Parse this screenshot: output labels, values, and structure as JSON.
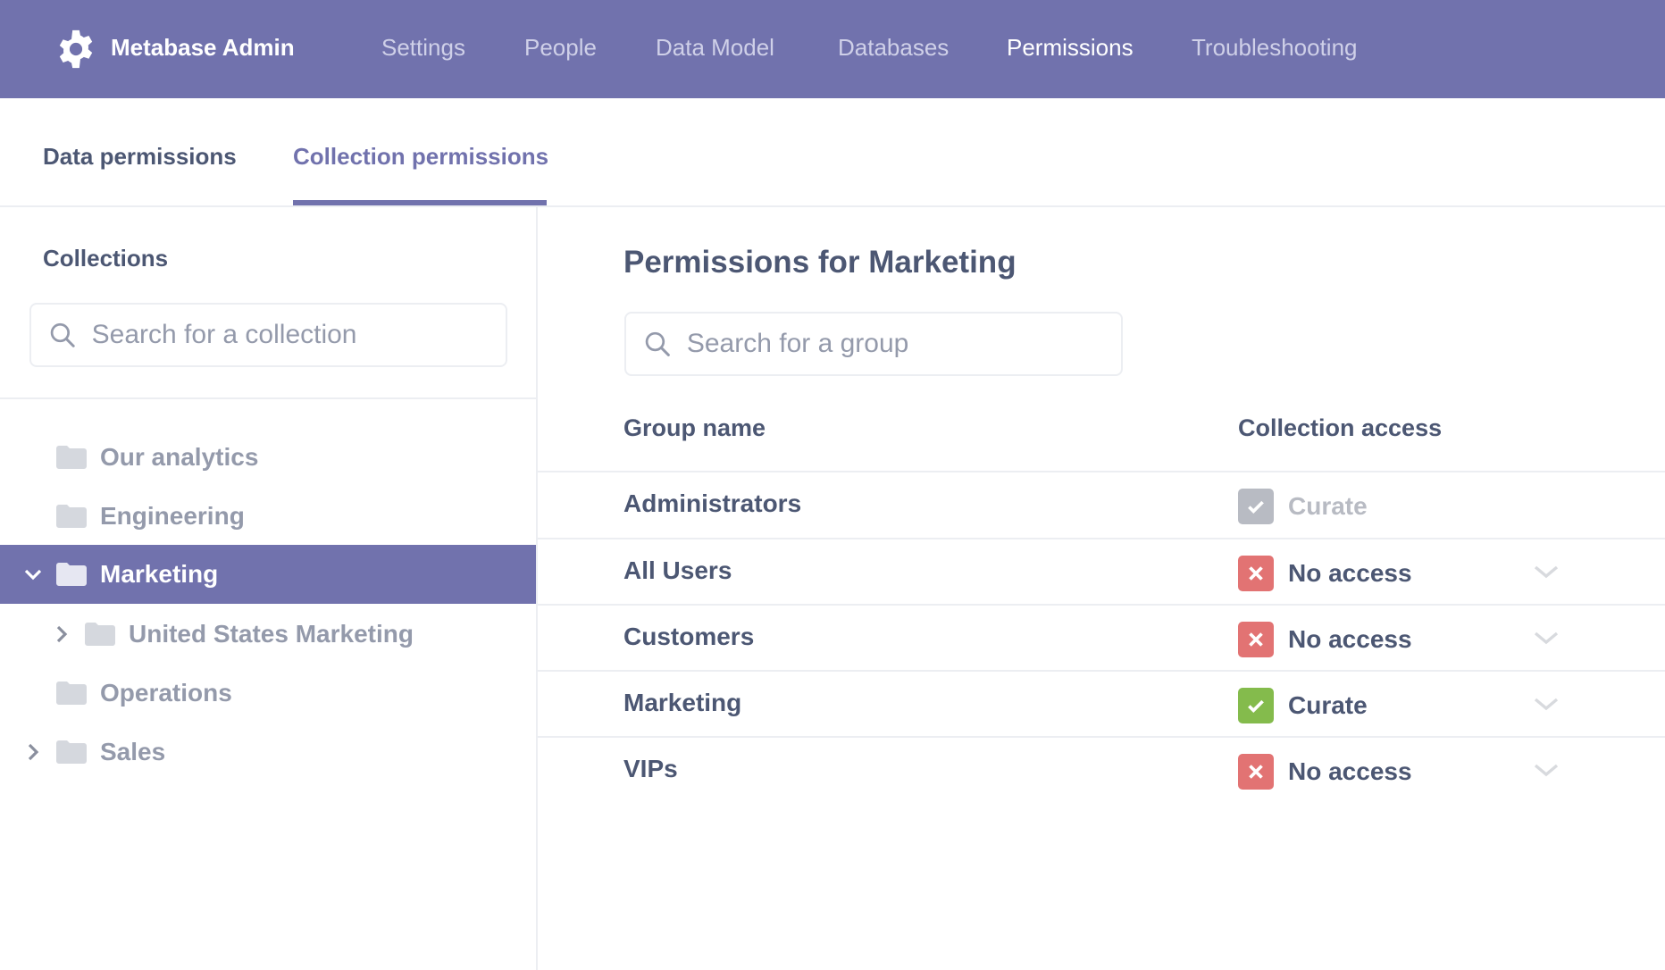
{
  "header": {
    "brand": "Metabase Admin",
    "nav": [
      "Settings",
      "People",
      "Data Model",
      "Databases",
      "Permissions",
      "Troubleshooting"
    ],
    "active_nav": "Permissions",
    "color": "#7172ad"
  },
  "tabs": {
    "data": "Data permissions",
    "collection": "Collection permissions",
    "active": "Collection permissions"
  },
  "sidebar": {
    "heading": "Collections",
    "search_placeholder": "Search for a collection",
    "items": [
      {
        "label": "Our analytics",
        "level": 0,
        "chevron": "none"
      },
      {
        "label": "Engineering",
        "level": 0,
        "chevron": "none"
      },
      {
        "label": "Marketing",
        "level": 0,
        "chevron": "down",
        "selected": true
      },
      {
        "label": "United States Marketing",
        "level": 1,
        "chevron": "right"
      },
      {
        "label": "Operations",
        "level": 0,
        "chevron": "none"
      },
      {
        "label": "Sales",
        "level": 0,
        "chevron": "right"
      }
    ]
  },
  "main": {
    "title": "Permissions for Marketing",
    "search_placeholder": "Search for a group",
    "columns": {
      "group": "Group name",
      "access": "Collection access"
    },
    "rows": [
      {
        "group": "Administrators",
        "access": "Curate",
        "status": "curate-disabled",
        "color": "#b8bbc3"
      },
      {
        "group": "All Users",
        "access": "No access",
        "status": "none",
        "color": "#e27373"
      },
      {
        "group": "Customers",
        "access": "No access",
        "status": "none",
        "color": "#e27373"
      },
      {
        "group": "Marketing",
        "access": "Curate",
        "status": "curate",
        "color": "#84bb4c"
      },
      {
        "group": "VIPs",
        "access": "No access",
        "status": "none",
        "color": "#e27373"
      }
    ]
  }
}
